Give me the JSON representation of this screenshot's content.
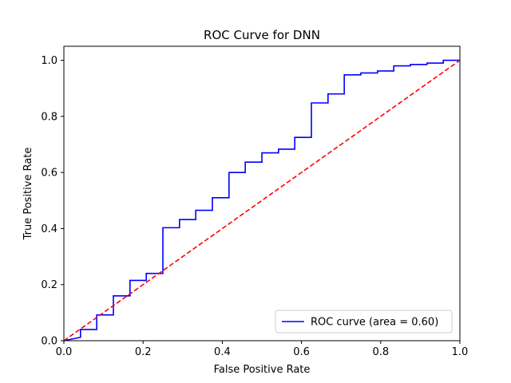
{
  "chart_data": {
    "type": "line",
    "title": "ROC Curve for DNN",
    "xlabel": "False Positive Rate",
    "ylabel": "True Positive Rate",
    "xlim": [
      0.0,
      1.0
    ],
    "ylim": [
      0.0,
      1.05
    ],
    "xticks": [
      0.0,
      0.2,
      0.4,
      0.6,
      0.8,
      1.0
    ],
    "xtick_labels": [
      "0.0",
      "0.2",
      "0.4",
      "0.6",
      "0.8",
      "1.0"
    ],
    "yticks": [
      0.0,
      0.2,
      0.4,
      0.6,
      0.8,
      1.0
    ],
    "ytick_labels": [
      "0.0",
      "0.2",
      "0.4",
      "0.6",
      "0.8",
      "1.0"
    ],
    "grid": false,
    "legend_position": "lower-right",
    "series": [
      {
        "name": "ROC curve (area = 0.60)",
        "color": "#0000ff",
        "style": "solid",
        "x": [
          0.0,
          0.0,
          0.042,
          0.042,
          0.083,
          0.083,
          0.125,
          0.125,
          0.167,
          0.167,
          0.208,
          0.208,
          0.25,
          0.25,
          0.292,
          0.292,
          0.333,
          0.333,
          0.375,
          0.375,
          0.417,
          0.417,
          0.458,
          0.458,
          0.5,
          0.5,
          0.542,
          0.542,
          0.583,
          0.583,
          0.625,
          0.625,
          0.667,
          0.667,
          0.708,
          0.708,
          0.75,
          0.75,
          0.792,
          0.792,
          0.833,
          0.833,
          0.875,
          0.875,
          0.917,
          0.917,
          0.958,
          0.958,
          1.0
        ],
        "y": [
          0.0,
          0.0,
          0.012,
          0.04,
          0.04,
          0.092,
          0.092,
          0.16,
          0.16,
          0.215,
          0.215,
          0.24,
          0.24,
          0.403,
          0.403,
          0.432,
          0.432,
          0.465,
          0.465,
          0.51,
          0.51,
          0.6,
          0.6,
          0.637,
          0.637,
          0.67,
          0.67,
          0.683,
          0.683,
          0.725,
          0.725,
          0.848,
          0.848,
          0.88,
          0.88,
          0.948,
          0.948,
          0.955,
          0.955,
          0.962,
          0.962,
          0.98,
          0.98,
          0.985,
          0.985,
          0.99,
          0.99,
          1.0,
          1.0
        ]
      },
      {
        "name": "",
        "color": "#ff0000",
        "style": "dashed",
        "x": [
          0.0,
          1.0
        ],
        "y": [
          0.0,
          1.0
        ]
      }
    ]
  }
}
